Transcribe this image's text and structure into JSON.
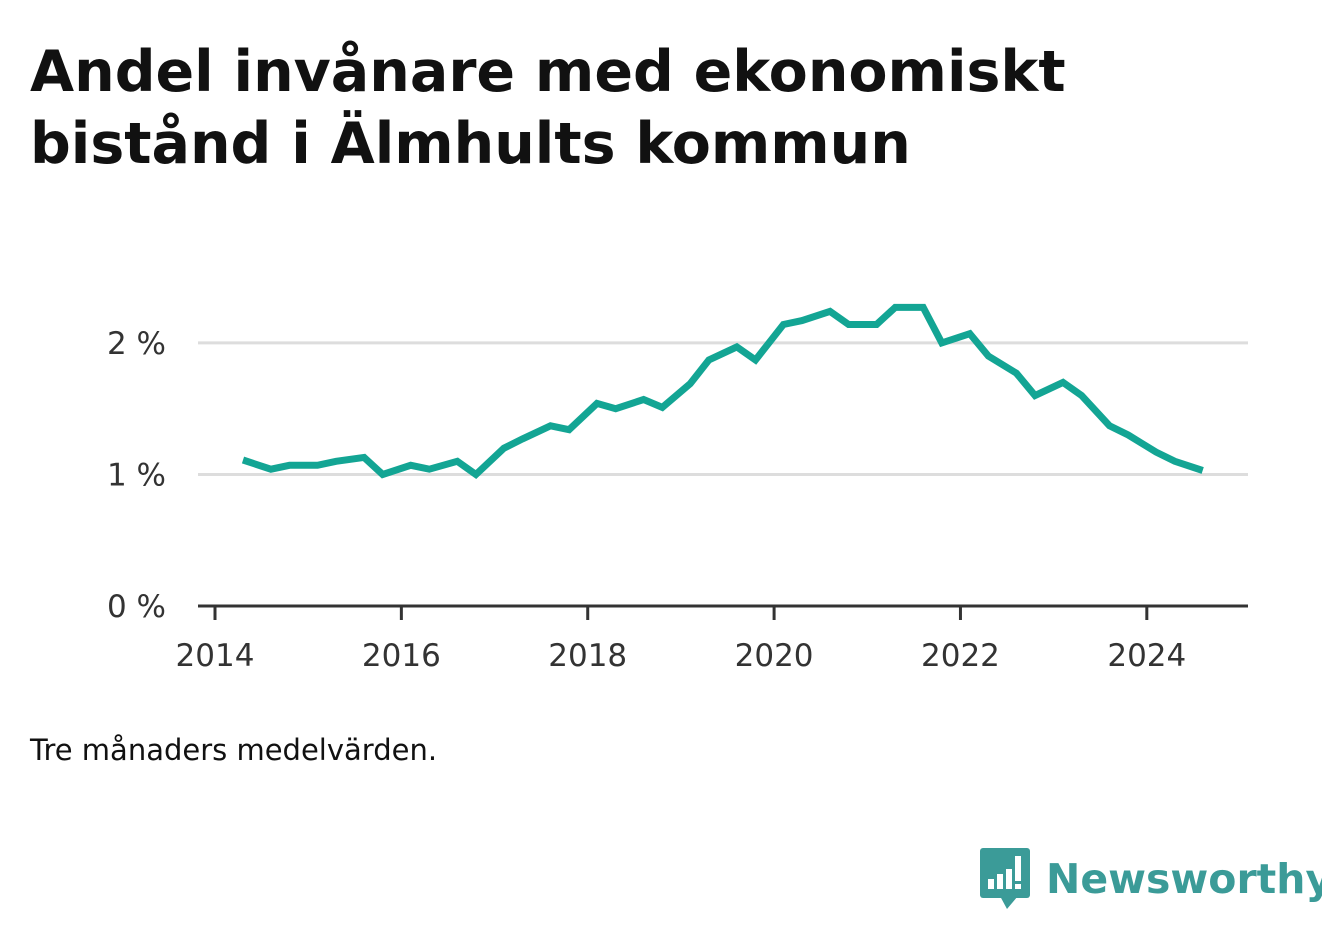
{
  "header": {
    "title": "Andel invånare med ekonomiskt bistånd i Älmhults kommun"
  },
  "footer": {
    "note": "Tre månaders medelvärden.",
    "brand_name": "Newsworthy",
    "brand_icon": "bar-chart-speech-bubble-icon",
    "brand_color": "#3b9b98"
  },
  "chart_data": {
    "type": "line",
    "title": "Andel invånare med ekonomiskt bistånd i Älmhults kommun",
    "xlabel": "",
    "ylabel": "",
    "x_ticks": [
      "2014",
      "2016",
      "2018",
      "2020",
      "2022",
      "2024"
    ],
    "y_ticks": [
      "0 %",
      "1 %",
      "2 %"
    ],
    "xlim": [
      2014.0,
      2025.0
    ],
    "ylim": [
      0,
      2.6
    ],
    "grid": true,
    "line_color": "#13a594",
    "series": [
      {
        "x": [
          2014.3,
          2014.6,
          2014.8,
          2015.1,
          2015.3,
          2015.6,
          2015.8,
          2016.1,
          2016.3,
          2016.6,
          2016.8,
          2017.1,
          2017.3,
          2017.6,
          2017.8,
          2018.1,
          2018.3,
          2018.6,
          2018.8,
          2019.1,
          2019.3,
          2019.6,
          2019.8,
          2020.1,
          2020.3,
          2020.6,
          2020.8,
          2021.1,
          2021.3,
          2021.6,
          2021.8,
          2022.1,
          2022.3,
          2022.6,
          2022.8,
          2023.1,
          2023.3,
          2023.6,
          2023.8,
          2024.1,
          2024.3,
          2024.6
        ],
        "values": [
          1.11,
          1.04,
          1.07,
          1.07,
          1.1,
          1.13,
          1.0,
          1.07,
          1.04,
          1.1,
          1.0,
          1.2,
          1.27,
          1.37,
          1.34,
          1.54,
          1.5,
          1.57,
          1.51,
          1.69,
          1.87,
          1.97,
          1.87,
          2.14,
          2.17,
          2.24,
          2.14,
          2.14,
          2.27,
          2.27,
          2.0,
          2.07,
          1.9,
          1.77,
          1.6,
          1.7,
          1.6,
          1.37,
          1.3,
          1.17,
          1.1,
          1.03
        ]
      }
    ]
  }
}
